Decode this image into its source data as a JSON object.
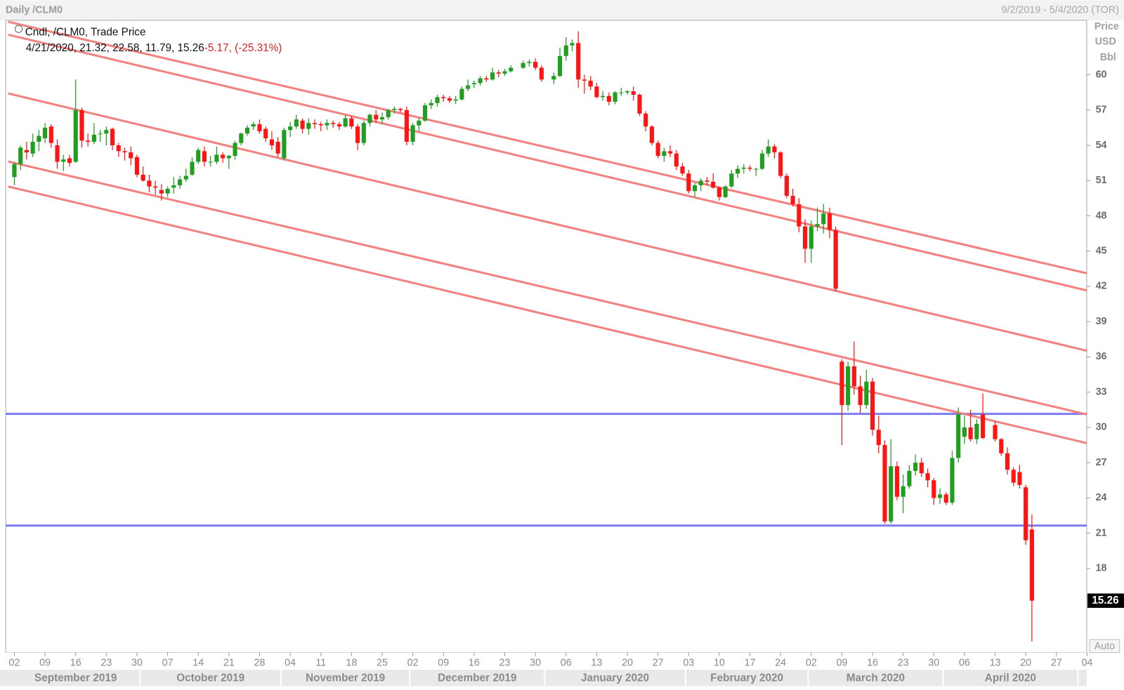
{
  "chart_data": {
    "type": "candlestick",
    "title": "Daily /CLM0",
    "date_range": "9/2/2019 - 5/4/2020 (TOR)",
    "legend_title": "Cndl, /CLM0, Trade Price",
    "info_line": "4/21/2020, 21.32, 22.58, 11.79, 15.26",
    "info_change": "-5.17, (-25.31%)",
    "y_axis_title": [
      "Price",
      "USD",
      "Bbl"
    ],
    "auto_button": "Auto",
    "up_color": "#1f9e1f",
    "down_color": "#ff1414",
    "trendline_color": "#f28282",
    "hline_color": "#7b7bf0",
    "xlim": [
      "2019-08-30",
      "2020-05-04"
    ],
    "ylim": [
      10.85,
      64.63
    ],
    "yticks": [
      18,
      21,
      24,
      27,
      30,
      33,
      36,
      39,
      42,
      45,
      48,
      51,
      54,
      57,
      60
    ],
    "xticks": [
      {
        "value": "2019-09-02",
        "label": "02"
      },
      {
        "value": "2019-09-09",
        "label": "09"
      },
      {
        "value": "2019-09-16",
        "label": "16"
      },
      {
        "value": "2019-09-23",
        "label": "23"
      },
      {
        "value": "2019-09-30",
        "label": "30"
      },
      {
        "value": "2019-10-07",
        "label": "07"
      },
      {
        "value": "2019-10-14",
        "label": "14"
      },
      {
        "value": "2019-10-21",
        "label": "21"
      },
      {
        "value": "2019-10-28",
        "label": "28"
      },
      {
        "value": "2019-11-04",
        "label": "04"
      },
      {
        "value": "2019-11-11",
        "label": "11"
      },
      {
        "value": "2019-11-18",
        "label": "18"
      },
      {
        "value": "2019-11-25",
        "label": "25"
      },
      {
        "value": "2019-12-02",
        "label": "02"
      },
      {
        "value": "2019-12-09",
        "label": "09"
      },
      {
        "value": "2019-12-16",
        "label": "16"
      },
      {
        "value": "2019-12-23",
        "label": "23"
      },
      {
        "value": "2019-12-30",
        "label": "30"
      },
      {
        "value": "2020-01-06",
        "label": "06"
      },
      {
        "value": "2020-01-13",
        "label": "13"
      },
      {
        "value": "2020-01-20",
        "label": "20"
      },
      {
        "value": "2020-01-27",
        "label": "27"
      },
      {
        "value": "2020-02-03",
        "label": "03"
      },
      {
        "value": "2020-02-10",
        "label": "10"
      },
      {
        "value": "2020-02-17",
        "label": "17"
      },
      {
        "value": "2020-02-24",
        "label": "24"
      },
      {
        "value": "2020-03-02",
        "label": "02"
      },
      {
        "value": "2020-03-09",
        "label": "09"
      },
      {
        "value": "2020-03-16",
        "label": "16"
      },
      {
        "value": "2020-03-23",
        "label": "23"
      },
      {
        "value": "2020-03-30",
        "label": "30"
      },
      {
        "value": "2020-04-06",
        "label": "06"
      },
      {
        "value": "2020-04-13",
        "label": "13"
      },
      {
        "value": "2020-04-20",
        "label": "20"
      },
      {
        "value": "2020-04-27",
        "label": "27"
      },
      {
        "value": "2020-05-04",
        "label": "04"
      }
    ],
    "months": [
      {
        "value": "2019-09",
        "label": "September 2019"
      },
      {
        "value": "2019-10",
        "label": "October 2019"
      },
      {
        "value": "2019-11",
        "label": "November 2019"
      },
      {
        "value": "2019-12",
        "label": "December 2019"
      },
      {
        "value": "2020-01",
        "label": "January 2020"
      },
      {
        "value": "2020-02",
        "label": "February 2020"
      },
      {
        "value": "2020-03",
        "label": "March 2020"
      },
      {
        "value": "2020-04",
        "label": "April 2020"
      }
    ],
    "x": [
      "2019-09-02",
      "2019-09-03",
      "2019-09-04",
      "2019-09-05",
      "2019-09-06",
      "2019-09-09",
      "2019-09-10",
      "2019-09-11",
      "2019-09-12",
      "2019-09-13",
      "2019-09-16",
      "2019-09-17",
      "2019-09-18",
      "2019-09-19",
      "2019-09-20",
      "2019-09-23",
      "2019-09-24",
      "2019-09-25",
      "2019-09-26",
      "2019-09-27",
      "2019-09-30",
      "2019-10-01",
      "2019-10-02",
      "2019-10-03",
      "2019-10-04",
      "2019-10-07",
      "2019-10-08",
      "2019-10-09",
      "2019-10-10",
      "2019-10-11",
      "2019-10-14",
      "2019-10-15",
      "2019-10-16",
      "2019-10-17",
      "2019-10-18",
      "2019-10-21",
      "2019-10-22",
      "2019-10-23",
      "2019-10-24",
      "2019-10-25",
      "2019-10-28",
      "2019-10-29",
      "2019-10-30",
      "2019-10-31",
      "2019-11-01",
      "2019-11-04",
      "2019-11-05",
      "2019-11-06",
      "2019-11-07",
      "2019-11-08",
      "2019-11-11",
      "2019-11-12",
      "2019-11-13",
      "2019-11-14",
      "2019-11-15",
      "2019-11-18",
      "2019-11-19",
      "2019-11-20",
      "2019-11-21",
      "2019-11-22",
      "2019-11-25",
      "2019-11-26",
      "2019-11-27",
      "2019-11-28",
      "2019-11-29",
      "2019-12-02",
      "2019-12-03",
      "2019-12-04",
      "2019-12-05",
      "2019-12-06",
      "2019-12-09",
      "2019-12-10",
      "2019-12-11",
      "2019-12-12",
      "2019-12-13",
      "2019-12-16",
      "2019-12-17",
      "2019-12-18",
      "2019-12-19",
      "2019-12-20",
      "2019-12-23",
      "2019-12-24",
      "2019-12-26",
      "2019-12-27",
      "2019-12-30",
      "2019-12-31",
      "2020-01-02",
      "2020-01-03",
      "2020-01-06",
      "2020-01-07",
      "2020-01-08",
      "2020-01-09",
      "2020-01-10",
      "2020-01-13",
      "2020-01-14",
      "2020-01-15",
      "2020-01-16",
      "2020-01-17",
      "2020-01-20",
      "2020-01-21",
      "2020-01-22",
      "2020-01-23",
      "2020-01-24",
      "2020-01-27",
      "2020-01-28",
      "2020-01-29",
      "2020-01-30",
      "2020-01-31",
      "2020-02-03",
      "2020-02-04",
      "2020-02-05",
      "2020-02-06",
      "2020-02-07",
      "2020-02-10",
      "2020-02-11",
      "2020-02-12",
      "2020-02-13",
      "2020-02-14",
      "2020-02-17",
      "2020-02-18",
      "2020-02-19",
      "2020-02-20",
      "2020-02-21",
      "2020-02-24",
      "2020-02-25",
      "2020-02-26",
      "2020-02-27",
      "2020-02-28",
      "2020-03-02",
      "2020-03-03",
      "2020-03-04",
      "2020-03-05",
      "2020-03-06",
      "2020-03-09",
      "2020-03-10",
      "2020-03-11",
      "2020-03-12",
      "2020-03-13",
      "2020-03-16",
      "2020-03-17",
      "2020-03-18",
      "2020-03-19",
      "2020-03-20",
      "2020-03-23",
      "2020-03-24",
      "2020-03-25",
      "2020-03-26",
      "2020-03-27",
      "2020-03-30",
      "2020-03-31",
      "2020-04-01",
      "2020-04-02",
      "2020-04-03",
      "2020-04-06",
      "2020-04-07",
      "2020-04-08",
      "2020-04-09",
      "2020-04-13",
      "2020-04-14",
      "2020-04-15",
      "2020-04-16",
      "2020-04-17",
      "2020-04-20",
      "2020-04-21"
    ],
    "open": [
      51.3,
      52.4,
      53.6,
      53.3,
      54.3,
      54.6,
      55.6,
      54.0,
      52.6,
      52.9,
      52.6,
      57.0,
      54.4,
      54.3,
      55.0,
      55.0,
      55.4,
      54.0,
      53.5,
      53.4,
      53.0,
      51.5,
      51.0,
      50.5,
      50.2,
      49.9,
      50.4,
      50.6,
      51.1,
      51.5,
      52.6,
      53.5,
      52.6,
      52.6,
      53.2,
      52.9,
      53.1,
      54.2,
      55.0,
      55.6,
      55.8,
      55.4,
      54.5,
      54.3,
      52.9,
      55.3,
      55.6,
      56.1,
      55.4,
      55.9,
      55.8,
      55.7,
      55.9,
      55.8,
      55.6,
      56.3,
      55.6,
      54.2,
      55.9,
      56.6,
      56.2,
      56.4,
      57.0,
      57.1,
      57.0,
      54.3,
      55.7,
      56.1,
      57.4,
      57.6,
      58.1,
      58.0,
      57.8,
      57.9,
      58.8,
      59.2,
      59.3,
      59.7,
      59.6,
      60.2,
      60.1,
      60.3,
      60.6,
      61.0,
      61.1,
      60.6,
      59.6,
      59.9,
      61.6,
      62.5,
      62.7,
      59.6,
      59.5,
      59.0,
      58.1,
      58.2,
      57.7,
      58.5,
      58.5,
      58.6,
      58.3,
      56.7,
      55.6,
      54.2,
      53.1,
      53.5,
      53.3,
      52.2,
      51.6,
      50.1,
      50.6,
      51.0,
      50.9,
      50.4,
      49.6,
      50.5,
      51.6,
      52.0,
      52.1,
      52.0,
      52.0,
      53.3,
      53.9,
      53.4,
      51.4,
      49.7,
      49.0,
      47.1,
      45.2,
      47.1,
      47.3,
      48.2,
      46.8,
      35.6,
      31.9,
      35.2,
      33.5,
      31.9,
      33.9,
      29.8,
      28.5,
      22.0,
      26.7,
      24.1,
      25.0,
      26.3,
      27.0,
      26.1,
      25.5,
      24.0,
      24.3,
      23.6,
      27.4,
      29.2,
      30.0,
      29.0,
      31.1,
      30.2,
      29.0,
      27.8,
      26.4,
      26.2,
      24.9,
      21.32
    ],
    "high": [
      52.6,
      54.0,
      54.3,
      55.0,
      55.3,
      55.9,
      55.8,
      54.5,
      53.2,
      53.2,
      59.6,
      57.2,
      55.0,
      55.9,
      55.3,
      55.6,
      55.5,
      54.2,
      53.8,
      53.9,
      53.2,
      52.2,
      51.5,
      51.0,
      50.7,
      50.5,
      51.3,
      51.4,
      52.0,
      53.0,
      53.8,
      53.9,
      53.1,
      53.9,
      53.4,
      53.2,
      54.4,
      55.1,
      55.7,
      56.0,
      56.2,
      55.6,
      55.2,
      54.7,
      55.5,
      56.0,
      56.6,
      56.3,
      56.3,
      56.2,
      56.0,
      56.2,
      56.1,
      56.0,
      56.6,
      56.5,
      55.8,
      56.1,
      56.7,
      57.0,
      56.8,
      57.1,
      57.3,
      57.2,
      57.3,
      55.9,
      56.3,
      57.6,
      57.9,
      58.3,
      58.3,
      58.2,
      58.2,
      59.0,
      59.6,
      59.5,
      59.9,
      59.9,
      60.6,
      60.4,
      60.5,
      60.8,
      61.2,
      61.3,
      61.4,
      60.8,
      60.2,
      62.3,
      63.2,
      63.0,
      63.7,
      60.0,
      59.9,
      59.3,
      58.6,
      58.5,
      58.6,
      58.9,
      58.7,
      59.0,
      58.4,
      56.9,
      55.7,
      54.4,
      53.8,
      54.0,
      53.6,
      52.5,
      51.9,
      50.8,
      51.2,
      51.3,
      51.6,
      50.5,
      50.6,
      51.9,
      52.3,
      52.4,
      52.3,
      52.1,
      53.6,
      54.5,
      54.1,
      53.5,
      51.6,
      50.3,
      49.5,
      47.7,
      47.6,
      48.7,
      49.0,
      48.7,
      47.1,
      35.8,
      35.6,
      37.3,
      34.4,
      34.9,
      34.2,
      31.0,
      28.9,
      29.0,
      27.1,
      26.0,
      26.8,
      27.7,
      27.4,
      26.5,
      25.7,
      24.8,
      24.5,
      28.0,
      31.7,
      31.0,
      31.5,
      30.7,
      32.9,
      30.5,
      29.1,
      28.3,
      26.6,
      26.8,
      25.1,
      22.58
    ],
    "low": [
      50.6,
      51.9,
      52.8,
      53.0,
      53.5,
      54.2,
      53.8,
      52.0,
      51.8,
      52.2,
      52.5,
      53.8,
      53.9,
      54.1,
      54.3,
      54.0,
      53.6,
      53.0,
      52.7,
      52.3,
      51.3,
      50.9,
      50.0,
      49.8,
      49.3,
      49.6,
      49.9,
      50.3,
      50.9,
      51.4,
      52.4,
      52.2,
      52.2,
      52.4,
      52.5,
      52.0,
      52.8,
      54.0,
      54.8,
      55.3,
      55.0,
      54.3,
      53.6,
      53.0,
      52.7,
      54.7,
      55.4,
      55.0,
      54.9,
      55.4,
      55.2,
      55.3,
      55.5,
      55.3,
      55.5,
      55.4,
      53.6,
      54.0,
      55.6,
      55.9,
      55.8,
      56.2,
      56.7,
      56.8,
      54.0,
      54.0,
      55.2,
      56.0,
      57.1,
      57.3,
      57.7,
      57.6,
      57.5,
      57.8,
      58.6,
      58.9,
      59.1,
      59.4,
      59.5,
      59.8,
      59.9,
      60.2,
      60.5,
      60.7,
      60.4,
      59.4,
      59.2,
      59.8,
      61.2,
      62.0,
      58.9,
      58.4,
      58.7,
      58.0,
      57.8,
      57.4,
      57.5,
      58.2,
      58.3,
      57.8,
      56.5,
      55.2,
      54.0,
      52.9,
      52.6,
      53.0,
      51.9,
      51.4,
      49.9,
      49.6,
      50.1,
      50.6,
      50.3,
      49.3,
      49.5,
      50.4,
      51.2,
      51.6,
      51.8,
      51.4,
      51.9,
      53.0,
      52.9,
      51.2,
      49.5,
      48.8,
      46.6,
      44.0,
      44.0,
      46.7,
      46.5,
      46.1,
      41.6,
      28.5,
      31.4,
      32.8,
      31.2,
      31.6,
      29.3,
      27.8,
      21.8,
      21.8,
      23.8,
      22.7,
      24.8,
      25.9,
      25.8,
      24.9,
      23.4,
      23.5,
      23.4,
      23.4,
      27.0,
      28.6,
      28.8,
      28.6,
      29.0,
      28.8,
      27.6,
      26.0,
      25.0,
      24.8,
      20.0,
      11.79
    ],
    "close": [
      52.4,
      53.8,
      53.4,
      54.3,
      54.8,
      55.5,
      54.2,
      52.6,
      52.8,
      52.5,
      57.0,
      54.4,
      54.3,
      54.9,
      55.0,
      55.3,
      54.0,
      53.5,
      53.4,
      52.9,
      51.5,
      51.0,
      50.5,
      50.4,
      49.9,
      50.3,
      50.6,
      51.1,
      51.4,
      52.6,
      53.6,
      52.6,
      52.6,
      53.2,
      52.9,
      53.1,
      54.2,
      55.0,
      55.5,
      55.8,
      55.2,
      54.6,
      54.0,
      53.3,
      55.3,
      55.6,
      56.2,
      55.4,
      55.9,
      55.8,
      55.7,
      55.9,
      55.8,
      55.6,
      56.3,
      55.6,
      54.2,
      55.9,
      56.6,
      56.2,
      56.4,
      57.0,
      57.1,
      57.0,
      54.3,
      55.7,
      56.1,
      57.4,
      57.6,
      58.1,
      58.0,
      57.8,
      57.9,
      58.8,
      59.1,
      59.3,
      59.7,
      59.6,
      60.2,
      60.1,
      60.3,
      60.6,
      61.0,
      61.1,
      60.6,
      59.6,
      59.9,
      61.6,
      62.5,
      62.7,
      59.6,
      59.5,
      59.0,
      58.1,
      58.2,
      57.7,
      58.5,
      58.5,
      58.6,
      58.3,
      56.7,
      55.6,
      54.2,
      53.1,
      53.5,
      53.3,
      52.2,
      51.6,
      50.1,
      50.6,
      51.0,
      50.9,
      50.4,
      49.6,
      50.5,
      51.6,
      52.0,
      52.1,
      52.0,
      52.0,
      53.3,
      53.9,
      53.4,
      51.4,
      49.7,
      49.0,
      47.1,
      45.2,
      47.1,
      47.3,
      48.2,
      46.8,
      41.8,
      31.9,
      35.2,
      33.5,
      31.9,
      33.9,
      29.8,
      28.5,
      22.0,
      26.7,
      24.1,
      25.0,
      26.3,
      27.0,
      26.1,
      25.5,
      24.0,
      24.3,
      23.6,
      27.4,
      31.1,
      30.0,
      29.0,
      30.3,
      29.1,
      29.0,
      27.8,
      26.4,
      25.3,
      25.1,
      20.4,
      15.26
    ],
    "trendlines": [
      {
        "x": [
          "2019-08-30",
          "2020-05-04"
        ],
        "values": [
          64.51,
          43.11
        ]
      },
      {
        "x": [
          "2019-08-30",
          "2020-05-04"
        ],
        "values": [
          63.41,
          41.65
        ]
      },
      {
        "x": [
          "2019-08-30",
          "2020-05-04"
        ],
        "values": [
          58.41,
          36.52
        ]
      },
      {
        "x": [
          "2019-08-30",
          "2020-05-04"
        ],
        "values": [
          52.62,
          31.1
        ]
      },
      {
        "x": [
          "2019-08-30",
          "2020-05-04"
        ],
        "values": [
          50.49,
          28.66
        ]
      }
    ],
    "hlines": [
      31.15,
      21.65
    ]
  }
}
